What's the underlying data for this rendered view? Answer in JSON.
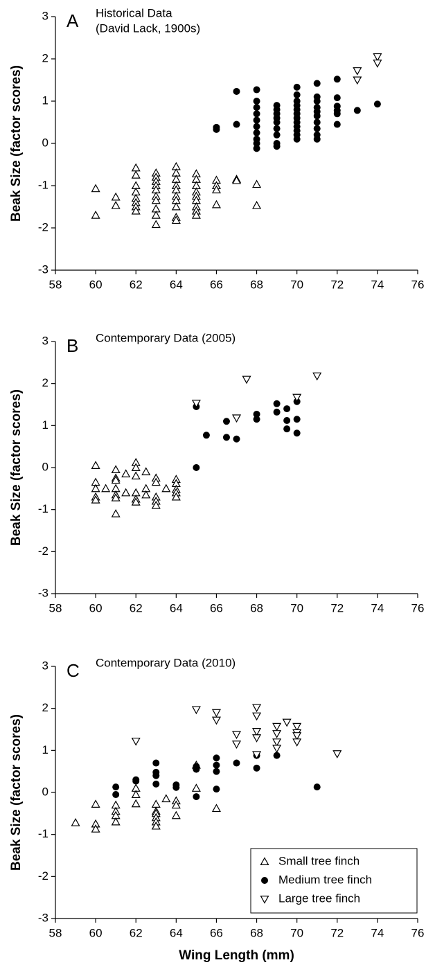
{
  "chart_data": [
    {
      "type": "scatter",
      "label": "A",
      "title_lines": [
        "Historical Data",
        "(David Lack, 1900s)"
      ],
      "y_label": "Beak Size (factor scores)",
      "xlim": [
        58,
        76
      ],
      "ylim": [
        -3,
        3
      ],
      "xticks": [
        58,
        60,
        62,
        64,
        66,
        68,
        70,
        72,
        74,
        76
      ],
      "yticks": [
        -3,
        -2,
        -1,
        0,
        1,
        2,
        3
      ],
      "legend": false,
      "series": [
        {
          "name": "Small tree finch",
          "marker": "triangle-up",
          "color": "#000000",
          "x": [
            60,
            60,
            61,
            61,
            62,
            62,
            62,
            62,
            62,
            62,
            62,
            62,
            63,
            63,
            63,
            63,
            63,
            63,
            63,
            63,
            63,
            63,
            64,
            64,
            64,
            64,
            64,
            64,
            64,
            64,
            64,
            64,
            65,
            65,
            65,
            65,
            65,
            65,
            65,
            65,
            65,
            66,
            66,
            66,
            66,
            67,
            67,
            68,
            68
          ],
          "values": [
            -1.07,
            -1.7,
            -1.27,
            -1.47,
            -0.58,
            -0.75,
            -1.0,
            -1.15,
            -1.3,
            -1.4,
            -1.5,
            -1.6,
            -0.7,
            -0.8,
            -0.9,
            -1.0,
            -1.1,
            -1.25,
            -1.35,
            -1.55,
            -1.7,
            -1.92,
            -0.55,
            -0.7,
            -0.85,
            -1.0,
            -1.1,
            -1.25,
            -1.35,
            -1.5,
            -1.75,
            -1.82,
            -0.72,
            -0.85,
            -1.0,
            -1.15,
            -1.25,
            -1.35,
            -1.5,
            -1.6,
            -1.7,
            -0.87,
            -1.0,
            -1.1,
            -1.45,
            -0.85,
            -0.88,
            -0.97,
            -1.47
          ]
        },
        {
          "name": "Medium tree finch",
          "marker": "circle",
          "color": "#000000",
          "x": [
            66,
            66,
            67,
            67,
            68,
            68,
            68,
            68,
            68,
            68,
            68,
            68,
            68,
            68,
            69,
            69,
            69,
            69,
            69,
            69,
            69,
            69,
            69,
            70,
            70,
            70,
            70,
            70,
            70,
            70,
            70,
            70,
            70,
            70,
            70,
            71,
            71,
            71,
            71,
            71,
            71,
            71,
            71,
            71,
            71,
            72,
            72,
            72,
            72,
            72,
            72,
            73,
            74
          ],
          "values": [
            0.33,
            0.38,
            0.45,
            1.23,
            1.27,
            1.0,
            0.85,
            0.7,
            0.55,
            0.4,
            0.25,
            0.1,
            0,
            -0.12,
            0.9,
            0.8,
            0.7,
            0.6,
            0.5,
            0.35,
            0.2,
            0,
            -0.07,
            1.33,
            1.15,
            1.0,
            0.9,
            0.8,
            0.7,
            0.6,
            0.5,
            0.4,
            0.3,
            0.2,
            0.1,
            1.42,
            1.1,
            1.0,
            0.85,
            0.75,
            0.65,
            0.5,
            0.35,
            0.2,
            0.1,
            1.52,
            1.08,
            0.88,
            0.78,
            0.7,
            0.45,
            0.78,
            0.93
          ]
        },
        {
          "name": "Large tree finch",
          "marker": "triangle-down",
          "color": "#000000",
          "x": [
            73,
            73,
            74,
            74
          ],
          "values": [
            1.72,
            1.5,
            2.05,
            1.9
          ]
        }
      ]
    },
    {
      "type": "scatter",
      "label": "B",
      "title_lines": [
        "Contemporary Data (2005)"
      ],
      "y_label": "Beak Size (factor scores)",
      "xlim": [
        58,
        76
      ],
      "ylim": [
        -3,
        3
      ],
      "xticks": [
        58,
        60,
        62,
        64,
        66,
        68,
        70,
        72,
        74,
        76
      ],
      "yticks": [
        -3,
        -2,
        -1,
        0,
        1,
        2,
        3
      ],
      "legend": false,
      "series": [
        {
          "name": "Small tree finch",
          "marker": "triangle-up",
          "color": "#000000",
          "x": [
            60,
            60,
            60,
            60,
            60,
            60.5,
            61,
            61,
            61,
            61,
            61,
            61,
            61,
            61.5,
            61.5,
            62,
            62,
            62,
            62,
            62,
            62,
            62.5,
            62.5,
            62.5,
            63,
            63,
            63,
            63,
            63,
            63.5,
            64,
            64,
            64,
            64,
            64
          ],
          "values": [
            0.05,
            -0.35,
            -0.5,
            -0.7,
            -0.77,
            -0.5,
            -0.05,
            -0.25,
            -0.3,
            -0.5,
            -0.65,
            -0.72,
            -1.1,
            -0.15,
            -0.6,
            0.12,
            0.0,
            -0.2,
            -0.6,
            -0.75,
            -0.82,
            -0.1,
            -0.5,
            -0.65,
            -0.25,
            -0.35,
            -0.7,
            -0.8,
            -0.9,
            -0.5,
            -0.28,
            -0.38,
            -0.52,
            -0.6,
            -0.7
          ]
        },
        {
          "name": "Medium tree finch",
          "marker": "circle",
          "color": "#000000",
          "x": [
            65,
            65,
            65.5,
            66.5,
            66.5,
            67,
            68,
            68,
            69,
            69,
            69.5,
            69.5,
            69.5,
            70,
            70,
            70
          ],
          "values": [
            1.45,
            0,
            0.77,
            1.1,
            0.72,
            0.68,
            1.27,
            1.15,
            1.52,
            1.32,
            1.4,
            1.12,
            0.92,
            1.57,
            1.15,
            0.82
          ]
        },
        {
          "name": "Large tree finch",
          "marker": "triangle-down",
          "color": "#000000",
          "x": [
            65,
            67,
            67.5,
            70,
            71
          ],
          "values": [
            1.53,
            1.18,
            2.1,
            1.67,
            2.18
          ]
        }
      ]
    },
    {
      "type": "scatter",
      "label": "C",
      "title_lines": [
        "Contemporary Data (2010)"
      ],
      "y_label": "Beak Size (factor scores)",
      "x_label": "Wing Length (mm)",
      "xlim": [
        58,
        76
      ],
      "ylim": [
        -3,
        3
      ],
      "xticks": [
        58,
        60,
        62,
        64,
        66,
        68,
        70,
        72,
        74,
        76
      ],
      "yticks": [
        -3,
        -2,
        -1,
        0,
        1,
        2,
        3
      ],
      "legend": "lower right",
      "series": [
        {
          "name": "Small tree finch",
          "marker": "triangle-up",
          "color": "#000000",
          "x": [
            59,
            60,
            60,
            60,
            61,
            61,
            61,
            61,
            62,
            62,
            62,
            63,
            63,
            63,
            63,
            63,
            63,
            63.5,
            64,
            64,
            64,
            65,
            65,
            66
          ],
          "values": [
            -0.72,
            -0.28,
            -0.75,
            -0.87,
            -0.3,
            -0.45,
            -0.55,
            -0.7,
            0.1,
            -0.05,
            -0.27,
            -0.28,
            -0.45,
            -0.5,
            -0.6,
            -0.7,
            -0.8,
            -0.15,
            -0.2,
            -0.3,
            -0.55,
            0.1,
            0.65,
            -0.38
          ]
        },
        {
          "name": "Medium tree finch",
          "marker": "circle",
          "color": "#000000",
          "x": [
            61,
            61,
            62,
            62,
            63,
            63,
            63,
            63,
            64,
            64,
            65,
            65,
            65,
            66,
            66,
            66,
            66,
            67,
            68,
            68,
            69,
            71
          ],
          "values": [
            0.13,
            -0.05,
            0.3,
            0.27,
            0.7,
            0.48,
            0.4,
            0.2,
            0.18,
            0.12,
            0.62,
            0.55,
            -0.1,
            0.82,
            0.65,
            0.5,
            0.08,
            0.7,
            0.58,
            0.88,
            0.88,
            0.13
          ]
        },
        {
          "name": "Large tree finch",
          "marker": "triangle-down",
          "color": "#000000",
          "x": [
            62,
            65,
            66,
            66,
            67,
            67,
            68,
            68,
            68,
            68,
            68,
            69,
            69,
            69,
            69,
            69.5,
            70,
            70,
            70,
            70,
            72
          ],
          "values": [
            1.22,
            1.97,
            1.9,
            1.72,
            1.38,
            1.15,
            2.02,
            1.82,
            1.45,
            1.3,
            0.9,
            1.57,
            1.4,
            1.2,
            1.05,
            1.67,
            1.57,
            1.42,
            1.35,
            1.2,
            0.92
          ]
        }
      ]
    }
  ]
}
